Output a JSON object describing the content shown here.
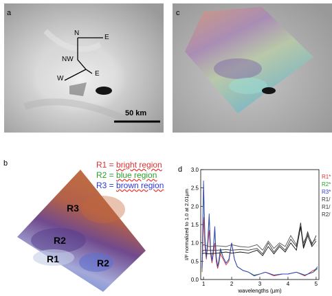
{
  "panels": {
    "a": {
      "label": "a",
      "scale_label": "50 km",
      "directions": [
        "N",
        "E",
        "NW",
        "E",
        "W"
      ]
    },
    "c": {
      "label": "c"
    },
    "b": {
      "label": "b",
      "legend": [
        {
          "code": "R1 = ",
          "text": "bright region",
          "color": "#e03030"
        },
        {
          "code": "R2 = ",
          "text": "blue region",
          "color": "#2aa02a"
        },
        {
          "code": "R3 = ",
          "text": "brown region",
          "color": "#2a35e0"
        }
      ],
      "regions": [
        "R3",
        "R2",
        "R1",
        "R2"
      ]
    },
    "d": {
      "label": "d",
      "series_labels": [
        {
          "text": "R1*",
          "color": "#e03030"
        },
        {
          "text": "R2*",
          "color": "#2aa02a"
        },
        {
          "text": "R3*",
          "color": "#3040d0"
        },
        {
          "text": "R1/",
          "color": "#333333"
        },
        {
          "text": "R1/",
          "color": "#333333"
        },
        {
          "text": "R2/",
          "color": "#333333"
        }
      ]
    }
  },
  "chart_data": {
    "type": "line",
    "xlabel": "wavelengths (µm)",
    "ylabel": "I/F normalized to 1.0 at 2.01µm",
    "xlim": [
      0.9,
      5.1
    ],
    "ylim": [
      0,
      3.0
    ],
    "xticks": [
      "1",
      "2",
      "3",
      "4",
      "5"
    ],
    "yticks": [
      "0.0",
      "0.5",
      "1.0",
      "1.5",
      "2.0",
      "2.5",
      "3.0"
    ],
    "series": [
      {
        "color": "#e03030",
        "x": [
          0.95,
          1.0,
          1.05,
          1.1,
          1.15,
          1.2,
          1.25,
          1.3,
          1.35,
          1.4,
          1.45,
          1.5,
          1.55,
          1.6,
          1.7,
          1.8,
          1.9,
          2.0,
          2.1,
          2.2,
          2.4,
          2.6,
          2.8,
          3.0,
          3.2,
          3.5,
          3.8,
          4.0,
          4.3,
          4.6,
          4.9,
          5.05
        ],
        "y": [
          0.2,
          1.7,
          0.9,
          0.55,
          0.9,
          1.35,
          0.7,
          0.45,
          0.7,
          1.0,
          0.5,
          0.3,
          0.45,
          0.7,
          0.55,
          0.4,
          0.5,
          1.0,
          0.55,
          0.35,
          0.25,
          0.2,
          0.1,
          0.15,
          0.2,
          0.1,
          0.15,
          0.15,
          0.2,
          0.1,
          0.25,
          0.3
        ]
      },
      {
        "color": "#2aa02a",
        "x": [
          0.95,
          1.0,
          1.05,
          1.1,
          1.15,
          1.2,
          1.25,
          1.3,
          1.35,
          1.4,
          1.45,
          1.5,
          1.55,
          1.6,
          1.7,
          1.8,
          1.9,
          2.0,
          2.1,
          2.2,
          2.4,
          2.6,
          2.8,
          3.0,
          3.2,
          3.5,
          3.8,
          4.0,
          4.3,
          4.6,
          4.9,
          5.05
        ],
        "y": [
          0.25,
          2.5,
          1.1,
          0.6,
          1.0,
          1.7,
          0.8,
          0.5,
          0.8,
          1.35,
          0.6,
          0.35,
          0.5,
          0.8,
          0.6,
          0.45,
          0.55,
          1.0,
          0.55,
          0.35,
          0.25,
          0.2,
          0.12,
          0.15,
          0.2,
          0.12,
          0.15,
          0.15,
          0.2,
          0.12,
          0.2,
          0.3
        ]
      },
      {
        "color": "#3040d0",
        "x": [
          0.95,
          1.0,
          1.05,
          1.1,
          1.15,
          1.2,
          1.25,
          1.3,
          1.35,
          1.4,
          1.45,
          1.5,
          1.55,
          1.6,
          1.7,
          1.8,
          1.9,
          2.0,
          2.1,
          2.2,
          2.4,
          2.6,
          2.8,
          3.0,
          3.2,
          3.5,
          3.8,
          4.0,
          4.3,
          4.6,
          4.9,
          5.05
        ],
        "y": [
          0.3,
          2.7,
          1.2,
          0.6,
          1.05,
          1.8,
          0.85,
          0.5,
          0.85,
          1.45,
          0.65,
          0.35,
          0.55,
          0.85,
          0.6,
          0.45,
          0.55,
          1.0,
          0.55,
          0.35,
          0.25,
          0.2,
          0.1,
          0.15,
          0.2,
          0.12,
          0.15,
          0.15,
          0.2,
          0.12,
          0.2,
          0.35
        ]
      },
      {
        "color": "#333333",
        "x": [
          0.95,
          1.0,
          1.2,
          1.5,
          1.8,
          2.0,
          2.3,
          2.6,
          2.9,
          3.1,
          3.3,
          3.5,
          3.7,
          3.9,
          4.1,
          4.3,
          4.45,
          4.55,
          4.7,
          4.85,
          5.0
        ],
        "y": [
          0.75,
          0.8,
          0.8,
          0.8,
          0.82,
          0.8,
          0.82,
          0.8,
          0.85,
          0.7,
          1.0,
          0.75,
          0.95,
          0.8,
          1.1,
          0.9,
          1.55,
          0.9,
          1.3,
          0.95,
          1.2
        ]
      },
      {
        "color": "#555555",
        "x": [
          0.95,
          1.0,
          1.2,
          1.5,
          1.8,
          2.0,
          2.3,
          2.6,
          2.9,
          3.1,
          3.3,
          3.5,
          3.7,
          3.9,
          4.1,
          4.3,
          4.45,
          4.55,
          4.7,
          4.85,
          5.0
        ],
        "y": [
          0.9,
          0.95,
          0.9,
          0.92,
          0.9,
          0.95,
          0.9,
          0.88,
          0.95,
          0.8,
          1.05,
          0.85,
          1.0,
          0.9,
          1.2,
          0.95,
          1.4,
          1.0,
          1.25,
          1.0,
          1.1
        ]
      },
      {
        "color": "#111111",
        "x": [
          0.95,
          1.0,
          1.2,
          1.5,
          1.8,
          2.0,
          2.3,
          2.6,
          2.9,
          3.1,
          3.3,
          3.5,
          3.7,
          3.9,
          4.1,
          4.3,
          4.45,
          4.55,
          4.7,
          4.85,
          5.0
        ],
        "y": [
          0.7,
          0.72,
          0.7,
          0.72,
          0.75,
          0.72,
          0.75,
          0.72,
          0.8,
          0.65,
          0.9,
          0.7,
          0.9,
          0.75,
          1.0,
          0.8,
          1.45,
          0.85,
          1.2,
          0.9,
          1.05
        ]
      }
    ]
  }
}
